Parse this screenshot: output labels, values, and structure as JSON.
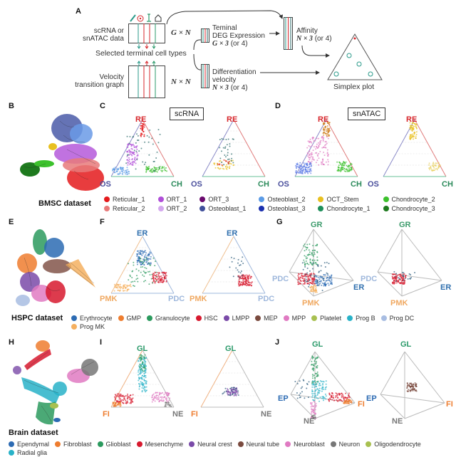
{
  "panel_labels": {
    "A": "A",
    "B": "B",
    "C": "C",
    "D": "D",
    "E": "E",
    "F": "F",
    "G": "G",
    "H": "H",
    "I": "I",
    "J": "J"
  },
  "panel_a": {
    "input_data_label_1": "scRNA or",
    "input_data_label_2": "snATAC data",
    "input_dim": "G × N",
    "selected_label": "Selected terminal cell types",
    "graph_label_1": "Velocity",
    "graph_label_2": "transition graph",
    "graph_dim": "N × N",
    "deg_label_1": "Teminal",
    "deg_label_2": "DEG Expression",
    "deg_dim": "G × 3",
    "deg_dim_suffix": "(or 4)",
    "diff_label_1": "Differentiation",
    "diff_label_2": "velocity",
    "diff_dim": "N × 3",
    "diff_dim_suffix": "(or 4)",
    "affinity_label": "Affinity",
    "affinity_dim": "N × 3",
    "affinity_dim_suffix": "(or 4)",
    "simplex_label": "Simplex plot",
    "icons": [
      "pipette-icon",
      "target-icon",
      "plant-cell-icon",
      "house-icon"
    ]
  },
  "bmsc": {
    "dataset_label": "BMSC dataset",
    "scrna_box": "scRNA",
    "snatac_box": "snATAC",
    "vertices": {
      "top": "RE",
      "left": "OS",
      "right": "CH"
    },
    "vertex_colors": {
      "RE": "#d7262b",
      "OS": "#4a4f9c",
      "CH": "#2a8a5a"
    },
    "legend": [
      {
        "label": "Reticular_1",
        "color": "#e41a1c"
      },
      {
        "label": "ORT_1",
        "color": "#b04fd8"
      },
      {
        "label": "ORT_3",
        "color": "#6a0a6e"
      },
      {
        "label": "Osteoblast_2",
        "color": "#5b9be6"
      },
      {
        "label": "OCT_Stem",
        "color": "#e8c020"
      },
      {
        "label": "Chondrocyte_2",
        "color": "#3cc12c"
      },
      {
        "label": "Reticular_2",
        "color": "#e87a7a"
      },
      {
        "label": "ORT_2",
        "color": "#d4a8ee"
      },
      {
        "label": "Osteoblast_1",
        "color": "#3f4f9a"
      },
      {
        "label": "Osteoblast_3",
        "color": "#1a2fae"
      },
      {
        "label": "Chondrocyte_1",
        "color": "#1e8f5a"
      },
      {
        "label": "Chondrocyte_3",
        "color": "#1e7a1e"
      }
    ]
  },
  "hspc": {
    "dataset_label": "HSPC dataset",
    "vertices_f": {
      "top": "ER",
      "left": "PMK",
      "right": "PDC"
    },
    "vertices_g": {
      "top": "GR",
      "left": "PDC",
      "right": "ER",
      "bottom": "PMK"
    },
    "vertex_colors": {
      "ER": "#2f6fae",
      "PMK": "#f0a860",
      "PDC": "#9fb8dc",
      "GR": "#3a9a6a"
    },
    "legend": [
      {
        "label": "Erythrocyte",
        "color": "#2c6bb3"
      },
      {
        "label": "GMP",
        "color": "#ee7d2f"
      },
      {
        "label": "Granulocyte",
        "color": "#2b9a5e"
      },
      {
        "label": "HSC",
        "color": "#d7192e"
      },
      {
        "label": "LMPP",
        "color": "#7a4aa8"
      },
      {
        "label": "MEP",
        "color": "#7a4a3e"
      },
      {
        "label": "MPP",
        "color": "#e07ac2"
      },
      {
        "label": "Platelet",
        "color": "#a8c050"
      },
      {
        "label": "Prog B",
        "color": "#28b2c8"
      },
      {
        "label": "Prog DC",
        "color": "#a8bde2"
      },
      {
        "label": "Prog MK",
        "color": "#f5b060"
      }
    ]
  },
  "brain": {
    "dataset_label": "Brain dataset",
    "vertices_i": {
      "top": "GL",
      "left": "FI",
      "right": "NE"
    },
    "vertices_j": {
      "top": "GL",
      "left": "EP",
      "right": "FI",
      "bottom": "NE"
    },
    "vertex_colors": {
      "GL": "#2a9a6a",
      "FI": "#ee7d2f",
      "NE": "#777777",
      "EP": "#2c6bb3"
    },
    "legend": [
      {
        "label": "Ependymal",
        "color": "#2c6bb3"
      },
      {
        "label": "Fibroblast",
        "color": "#ee7d2f"
      },
      {
        "label": "Glioblast",
        "color": "#2b9a5e"
      },
      {
        "label": "Mesenchyme",
        "color": "#d7192e"
      },
      {
        "label": "Neural crest",
        "color": "#7a4aa8"
      },
      {
        "label": "Neural tube",
        "color": "#7a4a3e"
      },
      {
        "label": "Neuroblast",
        "color": "#e07ac2"
      },
      {
        "label": "Neuron",
        "color": "#777777"
      },
      {
        "label": "Oligodendrocyte",
        "color": "#a8c050"
      },
      {
        "label": "Radial glia",
        "color": "#28b2c8"
      }
    ]
  }
}
